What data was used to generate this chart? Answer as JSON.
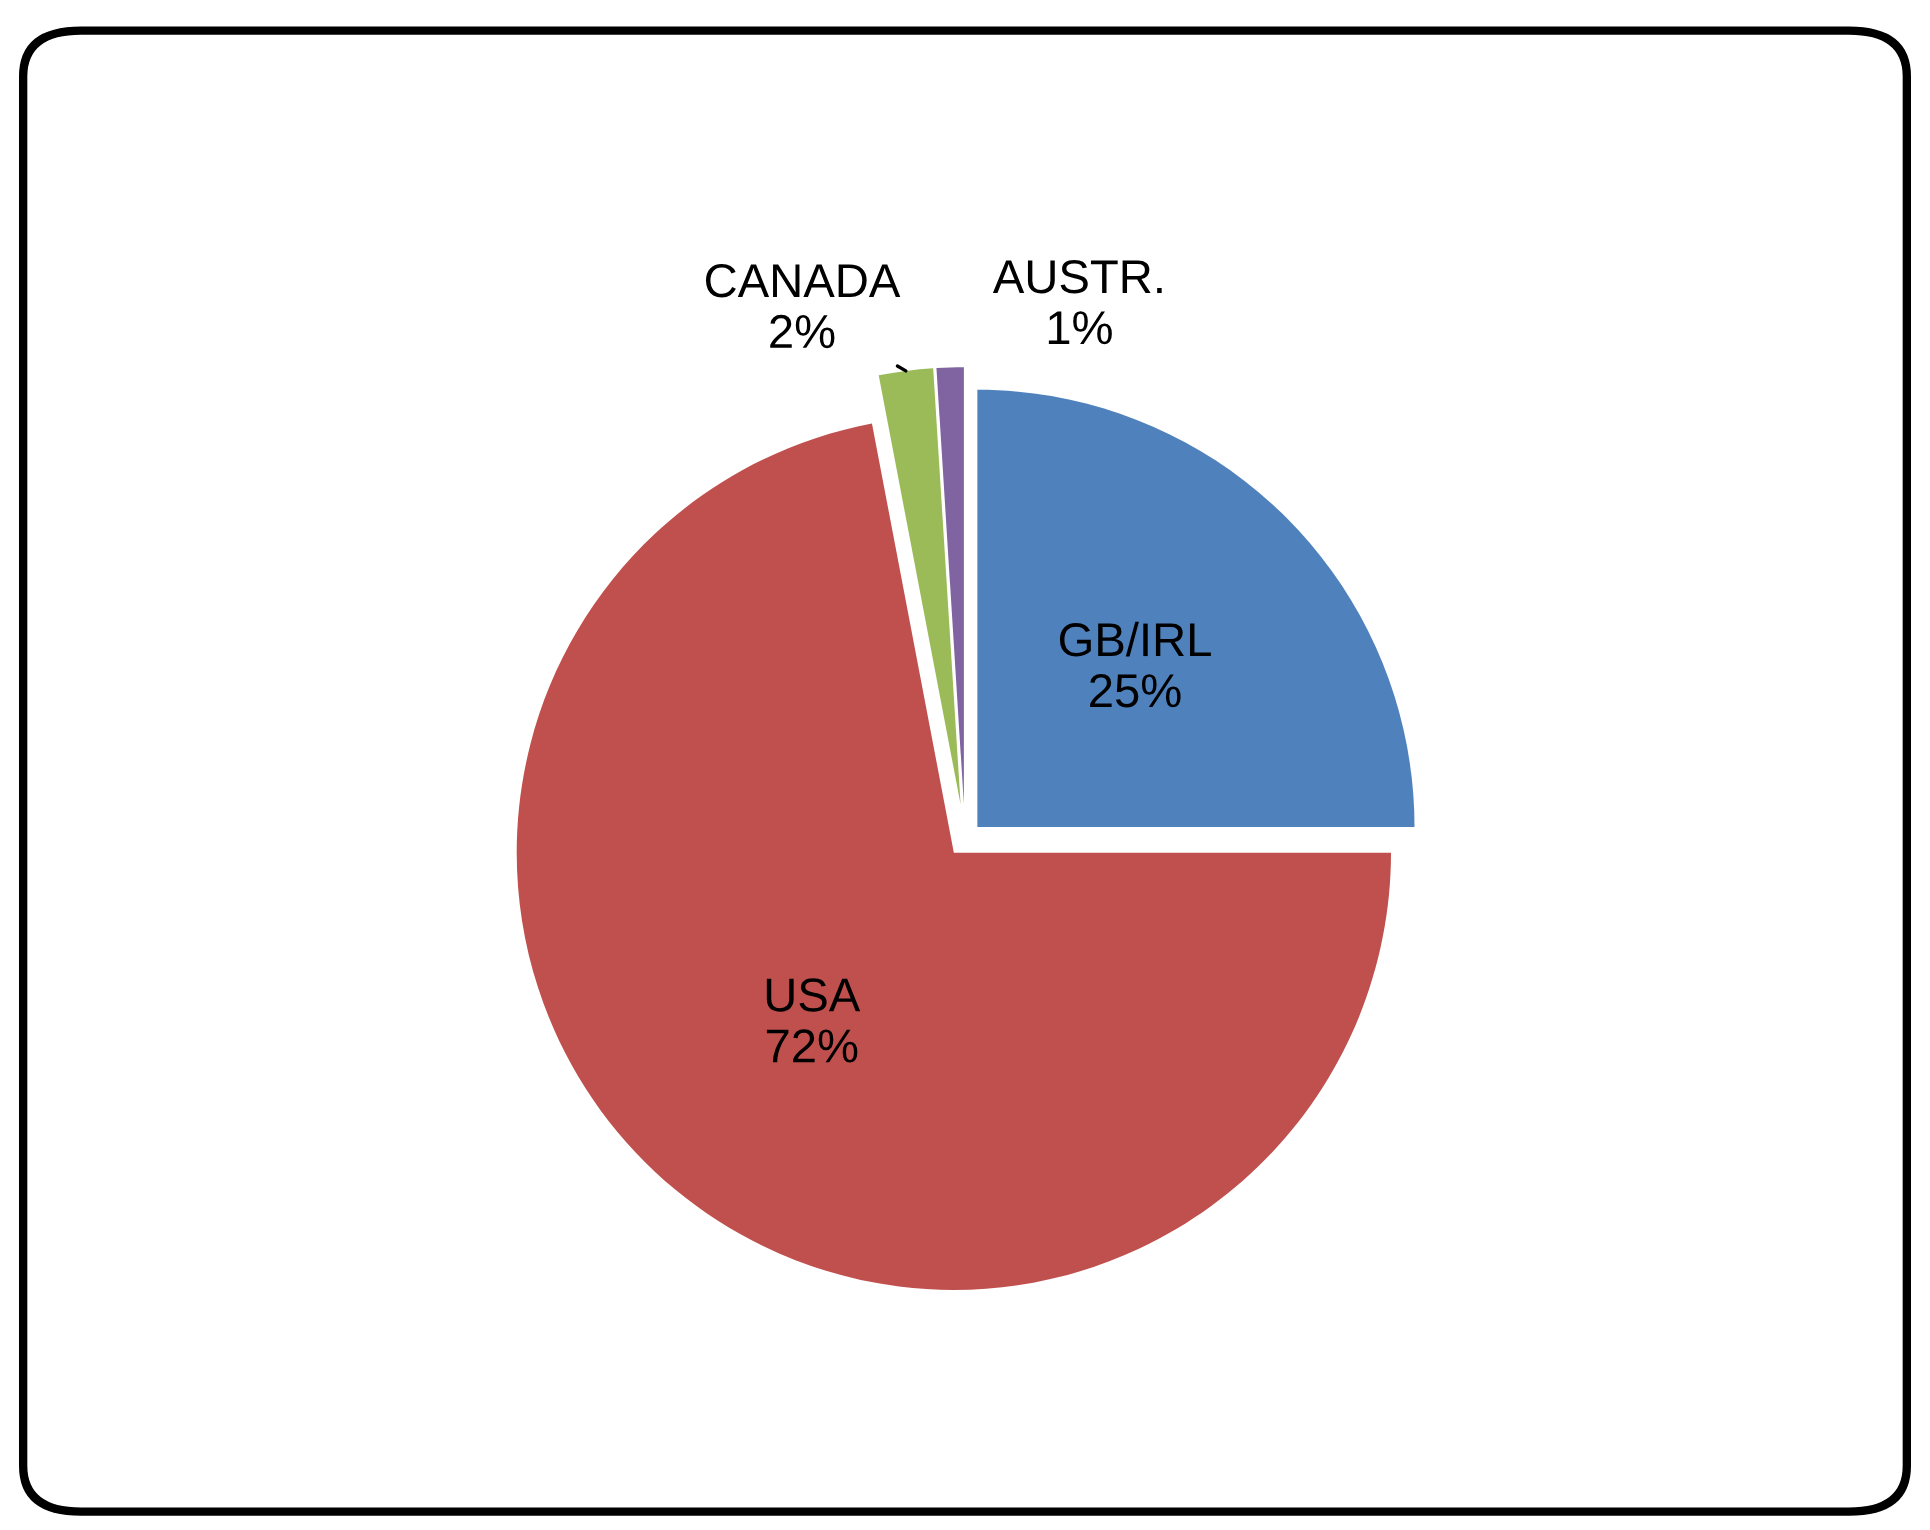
{
  "chart_data": {
    "type": "pie",
    "categories": [
      "GB/IRL",
      "USA",
      "CANADA",
      "AUSTR."
    ],
    "values": [
      25,
      72,
      2,
      1
    ],
    "colors": [
      "#4f81bd",
      "#c0504d",
      "#9bbb59",
      "#8064a2"
    ],
    "value_labels": [
      "25%",
      "72%",
      "2%",
      "1%"
    ]
  }
}
